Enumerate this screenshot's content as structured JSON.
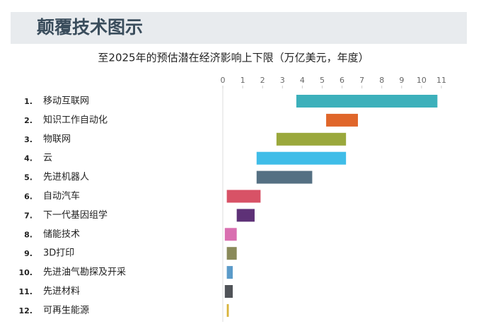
{
  "chart_data": {
    "type": "range-bar",
    "header": "颠覆技术图示",
    "title": "至2025年的预估潜在经济影响上下限（万亿美元，年度）",
    "index_labels": [
      "1.",
      "2.",
      "3.",
      "4.",
      "5.",
      "6.",
      "7.",
      "8.",
      "9.",
      "10.",
      "11.",
      "12."
    ],
    "categories": [
      "移动互联网",
      "知识工作自动化",
      "物联网",
      "云",
      "先进机器人",
      "自动汽车",
      "下一代基因组学",
      "储能技术",
      "3D打印",
      "先进油气勘探及开采",
      "先进材料",
      "可再生能源"
    ],
    "low": [
      3.7,
      5.2,
      2.7,
      1.7,
      1.7,
      0.2,
      0.7,
      0.1,
      0.2,
      0.2,
      0.1,
      0.2
    ],
    "high": [
      10.8,
      6.8,
      6.2,
      6.2,
      4.5,
      1.9,
      1.6,
      0.7,
      0.7,
      0.5,
      0.5,
      0.3
    ],
    "colors": [
      "#3cb0bb",
      "#e0662a",
      "#9aa83c",
      "#3fbde8",
      "#557083",
      "#d85266",
      "#5e3177",
      "#d96fb0",
      "#8a8a5a",
      "#5b9bc9",
      "#505358",
      "#d8b33a"
    ],
    "xlim": [
      0,
      11
    ],
    "xticks": [
      0,
      1,
      2,
      3,
      4,
      5,
      6,
      7,
      8,
      9,
      10,
      11
    ]
  }
}
